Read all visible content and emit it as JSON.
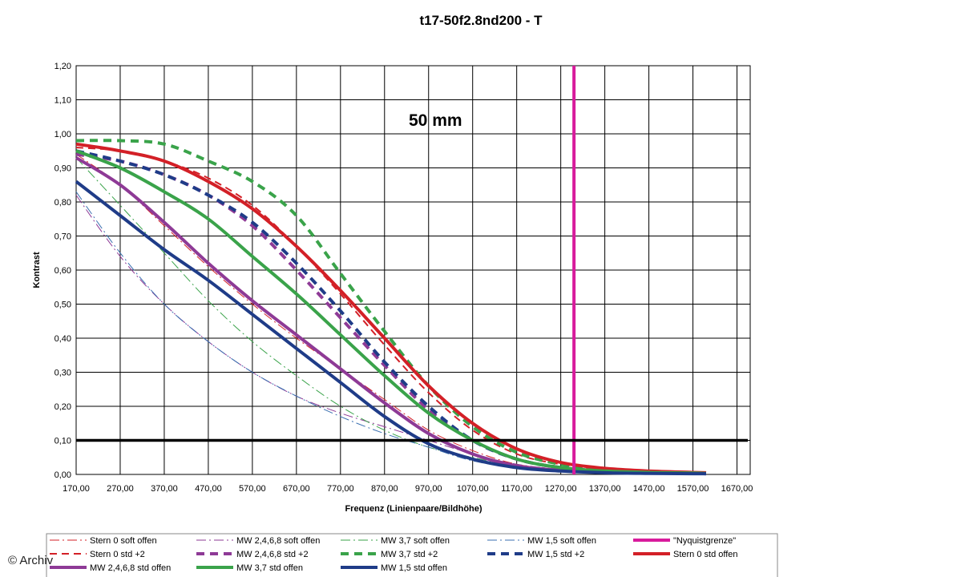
{
  "watermark": "© Archiv",
  "chart_data": {
    "type": "line",
    "title": "t17-50f2.8nd200 - T",
    "annotation": "50 mm",
    "xlabel": "Frequenz (Linienpaare/Bildhöhe)",
    "ylabel": "Kontrast",
    "xlim": [
      170,
      1700
    ],
    "ylim": [
      0,
      1.2
    ],
    "x_ticks": [
      "170,00",
      "270,00",
      "370,00",
      "470,00",
      "570,00",
      "670,00",
      "770,00",
      "870,00",
      "970,00",
      "1070,00",
      "1170,00",
      "1270,00",
      "1370,00",
      "1470,00",
      "1570,00",
      "1670,00"
    ],
    "y_ticks": [
      "0,00",
      "0,10",
      "0,20",
      "0,30",
      "0,40",
      "0,50",
      "0,60",
      "0,70",
      "0,80",
      "0,90",
      "1,00",
      "1,10",
      "1,20"
    ],
    "grid": true,
    "legend_position": "bottom",
    "reference_lines": [
      {
        "name": "\"Nyquistgrenze\"",
        "orientation": "vertical",
        "value": 1300,
        "color": "#d81b9c",
        "legend_index": 4
      },
      {
        "orientation": "horizontal",
        "value": 0.1,
        "color": "#000000"
      }
    ],
    "series": [
      {
        "name": "Stern 0 soft offen",
        "color": "#d32027",
        "style": "dashdot",
        "width": 1,
        "x": [
          170,
          270,
          370,
          470,
          570,
          670,
          770,
          870,
          970,
          1070,
          1170,
          1270,
          1370,
          1470,
          1570,
          1600
        ],
        "y": [
          0.94,
          0.85,
          0.73,
          0.61,
          0.5,
          0.4,
          0.31,
          0.22,
          0.13,
          0.07,
          0.03,
          0.015,
          0.008,
          0.005,
          0.003,
          0.003
        ]
      },
      {
        "name": "MW 2,4,6,8 soft offen",
        "color": "#8e3a96",
        "style": "dashdot",
        "width": 1,
        "x": [
          170,
          270,
          370,
          470,
          570,
          670,
          770,
          870,
          970,
          1070,
          1170,
          1270,
          1370,
          1470,
          1570,
          1600
        ],
        "y": [
          0.82,
          0.64,
          0.5,
          0.39,
          0.3,
          0.23,
          0.18,
          0.14,
          0.1,
          0.06,
          0.03,
          0.015,
          0.008,
          0.005,
          0.003,
          0.003
        ]
      },
      {
        "name": "MW 3,7 soft offen",
        "color": "#3aa34a",
        "style": "dashdot",
        "width": 1,
        "x": [
          170,
          270,
          370,
          470,
          570,
          670,
          770,
          870,
          970,
          1070,
          1170,
          1270,
          1370,
          1470,
          1570,
          1600
        ],
        "y": [
          0.93,
          0.79,
          0.65,
          0.51,
          0.39,
          0.29,
          0.2,
          0.13,
          0.08,
          0.05,
          0.025,
          0.012,
          0.007,
          0.004,
          0.003,
          0.003
        ]
      },
      {
        "name": "MW 1,5 soft offen",
        "color": "#3a6fb0",
        "style": "dashdot",
        "width": 1,
        "x": [
          170,
          270,
          370,
          470,
          570,
          670,
          770,
          870,
          970,
          1070,
          1170,
          1270,
          1370,
          1470,
          1570,
          1600
        ],
        "y": [
          0.83,
          0.65,
          0.5,
          0.39,
          0.3,
          0.23,
          0.17,
          0.12,
          0.08,
          0.04,
          0.02,
          0.01,
          0.006,
          0.004,
          0.003,
          0.003
        ]
      },
      {
        "name": "Stern 0 std +2",
        "color": "#d32027",
        "style": "dash",
        "width": 2,
        "x": [
          170,
          270,
          370,
          470,
          570,
          670,
          770,
          870,
          970,
          1070,
          1170,
          1270,
          1370,
          1470,
          1570,
          1600
        ],
        "y": [
          0.96,
          0.95,
          0.92,
          0.87,
          0.79,
          0.67,
          0.53,
          0.38,
          0.24,
          0.13,
          0.06,
          0.03,
          0.015,
          0.008,
          0.005,
          0.004
        ]
      },
      {
        "name": "MW 2,4,6,8 std +2",
        "color": "#8e3a96",
        "style": "dash",
        "width": 4,
        "x": [
          170,
          270,
          370,
          470,
          570,
          670,
          770,
          870,
          970,
          1070,
          1170,
          1270,
          1370,
          1470,
          1570,
          1600
        ],
        "y": [
          0.94,
          0.92,
          0.88,
          0.82,
          0.73,
          0.6,
          0.46,
          0.32,
          0.19,
          0.1,
          0.045,
          0.02,
          0.01,
          0.006,
          0.004,
          0.003
        ]
      },
      {
        "name": "MW 3,7 std +2",
        "color": "#3aa34a",
        "style": "dash",
        "width": 4,
        "x": [
          170,
          270,
          370,
          470,
          570,
          670,
          770,
          870,
          970,
          1070,
          1170,
          1270,
          1370,
          1470,
          1570,
          1600
        ],
        "y": [
          0.98,
          0.98,
          0.97,
          0.92,
          0.86,
          0.76,
          0.59,
          0.42,
          0.26,
          0.14,
          0.065,
          0.03,
          0.015,
          0.008,
          0.005,
          0.004
        ]
      },
      {
        "name": "MW 1,5 std +2",
        "color": "#1f3c88",
        "style": "dash",
        "width": 4,
        "x": [
          170,
          270,
          370,
          470,
          570,
          670,
          770,
          870,
          970,
          1070,
          1170,
          1270,
          1370,
          1470,
          1570,
          1600
        ],
        "y": [
          0.95,
          0.92,
          0.88,
          0.82,
          0.74,
          0.62,
          0.48,
          0.33,
          0.2,
          0.1,
          0.045,
          0.02,
          0.01,
          0.006,
          0.004,
          0.003
        ]
      },
      {
        "name": "Stern 0 std offen",
        "color": "#d32027",
        "style": "solid",
        "width": 4,
        "x": [
          170,
          270,
          370,
          470,
          570,
          670,
          770,
          870,
          970,
          1070,
          1170,
          1270,
          1370,
          1470,
          1570,
          1600
        ],
        "y": [
          0.97,
          0.95,
          0.92,
          0.86,
          0.78,
          0.67,
          0.54,
          0.4,
          0.26,
          0.15,
          0.075,
          0.035,
          0.018,
          0.01,
          0.006,
          0.005
        ]
      },
      {
        "name": "MW 2,4,6,8 std offen",
        "color": "#8e3a96",
        "style": "solid",
        "width": 4,
        "x": [
          170,
          270,
          370,
          470,
          570,
          670,
          770,
          870,
          970,
          1070,
          1170,
          1270,
          1370,
          1470,
          1570,
          1600
        ],
        "y": [
          0.93,
          0.85,
          0.74,
          0.62,
          0.51,
          0.41,
          0.31,
          0.21,
          0.12,
          0.06,
          0.025,
          0.012,
          0.006,
          0.004,
          0.003,
          0.002
        ]
      },
      {
        "name": "MW 3,7 std offen",
        "color": "#3aa34a",
        "style": "solid",
        "width": 4,
        "x": [
          170,
          270,
          370,
          470,
          570,
          670,
          770,
          870,
          970,
          1070,
          1170,
          1270,
          1370,
          1470,
          1570,
          1600
        ],
        "y": [
          0.95,
          0.9,
          0.83,
          0.75,
          0.64,
          0.53,
          0.41,
          0.29,
          0.18,
          0.1,
          0.045,
          0.02,
          0.01,
          0.006,
          0.004,
          0.003
        ]
      },
      {
        "name": "MW 1,5 std offen",
        "color": "#1f3c88",
        "style": "solid",
        "width": 4,
        "x": [
          170,
          270,
          370,
          470,
          570,
          670,
          770,
          870,
          970,
          1070,
          1170,
          1270,
          1370,
          1470,
          1570,
          1600
        ],
        "y": [
          0.86,
          0.76,
          0.66,
          0.57,
          0.47,
          0.37,
          0.27,
          0.17,
          0.09,
          0.045,
          0.02,
          0.01,
          0.005,
          0.003,
          0.002,
          0.002
        ]
      }
    ],
    "legend_entries": [
      {
        "ref": "series",
        "index": 0
      },
      {
        "ref": "series",
        "index": 1
      },
      {
        "ref": "series",
        "index": 2
      },
      {
        "ref": "series",
        "index": 3
      },
      {
        "ref": "reference",
        "index": 0
      },
      {
        "ref": "series",
        "index": 4
      },
      {
        "ref": "series",
        "index": 5
      },
      {
        "ref": "series",
        "index": 6
      },
      {
        "ref": "series",
        "index": 7
      },
      {
        "ref": "series",
        "index": 8
      },
      {
        "ref": "series",
        "index": 9
      },
      {
        "ref": "series",
        "index": 10
      },
      {
        "ref": "series",
        "index": 11
      }
    ]
  }
}
